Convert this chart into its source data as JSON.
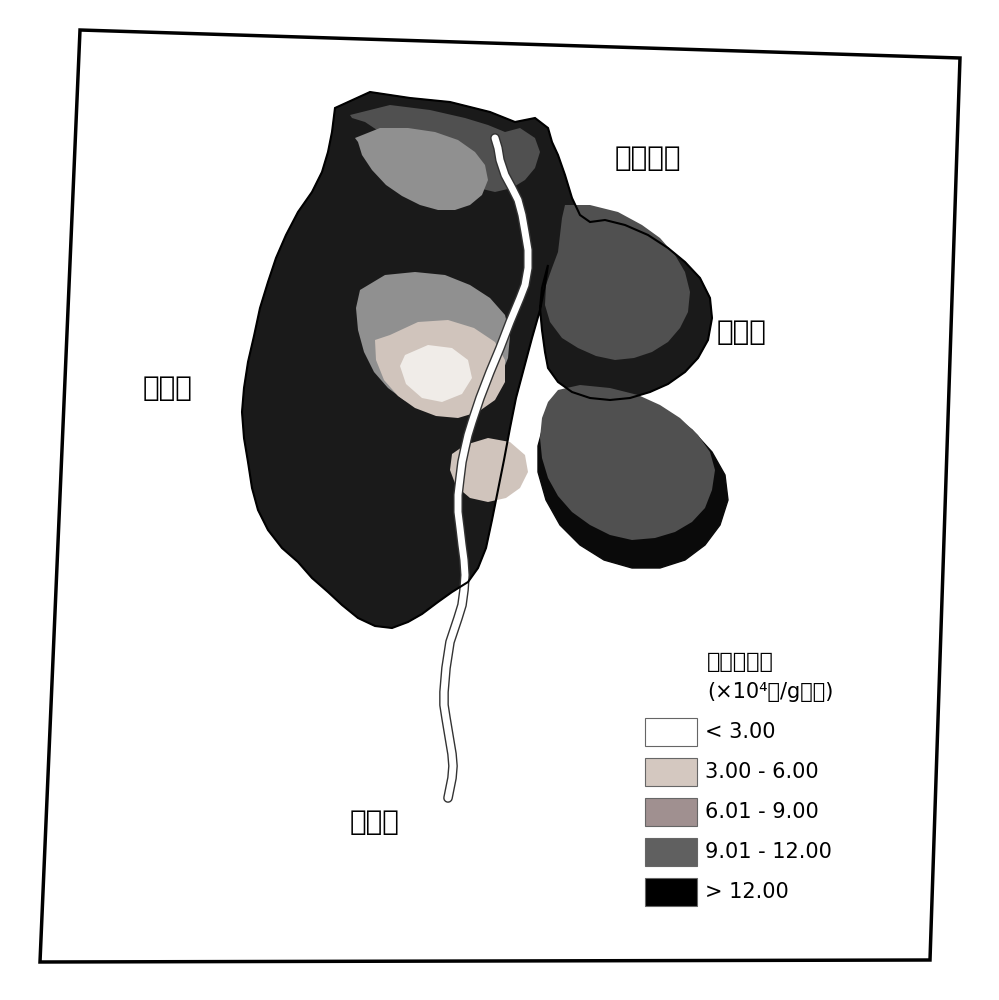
{
  "background_color": "#ffffff",
  "border_color": "#000000",
  "labels": {
    "shuang_tai_zi_he": "双台子河",
    "pan_shan_xian": "盘山县",
    "da_wa_xian": "大洼县",
    "liao_dong_wan": "辽东湾"
  },
  "legend_title_line1": "硒化微生物",
  "legend_title_line2": "(×10⁴个/g干土)",
  "legend_items": [
    {
      "label": "< 3.00",
      "color": "#ffffff"
    },
    {
      "label": "3.00 - 6.00",
      "color": "#d4c8c0"
    },
    {
      "label": "6.01 - 9.00",
      "color": "#a09090"
    },
    {
      "label": "9.01 - 12.00",
      "color": "#606060"
    },
    {
      "label": "> 12.00",
      "color": "#000000"
    }
  ],
  "label_fontsize": 20,
  "legend_fontsize": 15,
  "legend_title_fontsize": 16
}
